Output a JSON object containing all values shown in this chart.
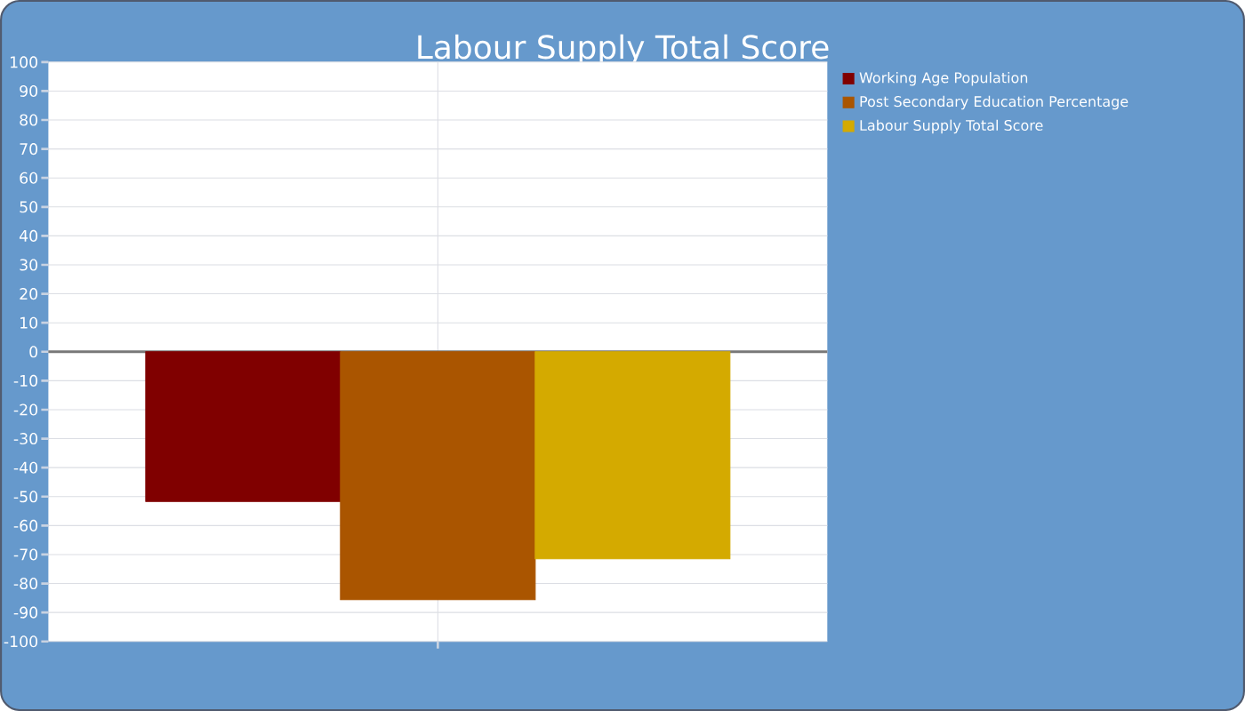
{
  "chart_data": {
    "type": "bar",
    "title": "Labour Supply Total Score",
    "categories": [
      null
    ],
    "series": [
      {
        "name": "Working Age Population",
        "color": "#800000",
        "values": [
          -51.7
        ]
      },
      {
        "name": "Post Secondary Education Percentage",
        "color": "#aa5500",
        "values": [
          -85.6
        ]
      },
      {
        "name": "Labour Supply Total Score",
        "color": "#d4aa00",
        "values": [
          -71.5
        ]
      }
    ],
    "ylim": [
      -100,
      100
    ],
    "yticks": [
      -100,
      -90,
      -80,
      -70,
      -60,
      -50,
      -40,
      -30,
      -20,
      -10,
      0,
      10,
      20,
      30,
      40,
      50,
      60,
      70,
      80,
      90,
      100
    ],
    "grid": true,
    "legend": "top right"
  }
}
